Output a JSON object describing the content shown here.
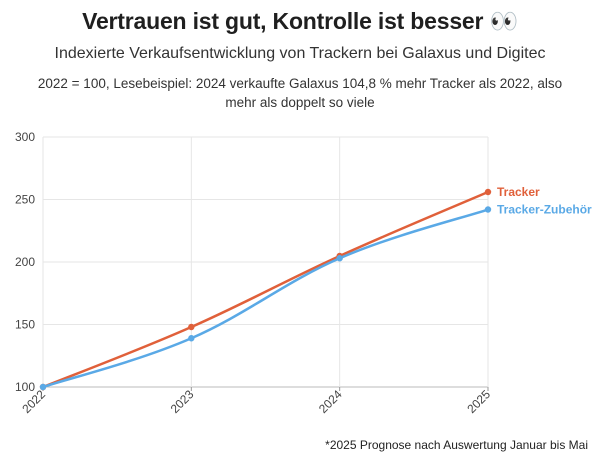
{
  "header": {
    "title": "Vertrauen ist gut, Kontrolle ist besser 👀",
    "subtitle": "Indexierte Verkaufsentwicklung von Trackern bei Galaxus und Digitec",
    "note": "2022 = 100, Lesebeispiel: 2024 verkaufte Galaxus 104,8 % mehr Tracker als 2022, also mehr als doppelt so viele"
  },
  "footnote": "*2025 Prognose nach Auswertung Januar bis Mai",
  "chart_data": {
    "type": "line",
    "title": "Vertrauen ist gut, Kontrolle ist besser 👀",
    "subtitle": "Indexierte Verkaufsentwicklung von Trackern bei Galaxus und Digitec",
    "categories": [
      "2022",
      "2023",
      "2024",
      "2025"
    ],
    "series": [
      {
        "name": "Tracker",
        "color": "#e0603a",
        "values": [
          100,
          148,
          204.8,
          256
        ]
      },
      {
        "name": "Tracker-Zubehör",
        "color": "#5aa9e6",
        "values": [
          100,
          139,
          203,
          242
        ]
      }
    ],
    "ylim": [
      100,
      300
    ],
    "yticks": [
      100,
      150,
      200,
      250,
      300
    ],
    "grid": true,
    "legend": "direct labels at line ends"
  }
}
